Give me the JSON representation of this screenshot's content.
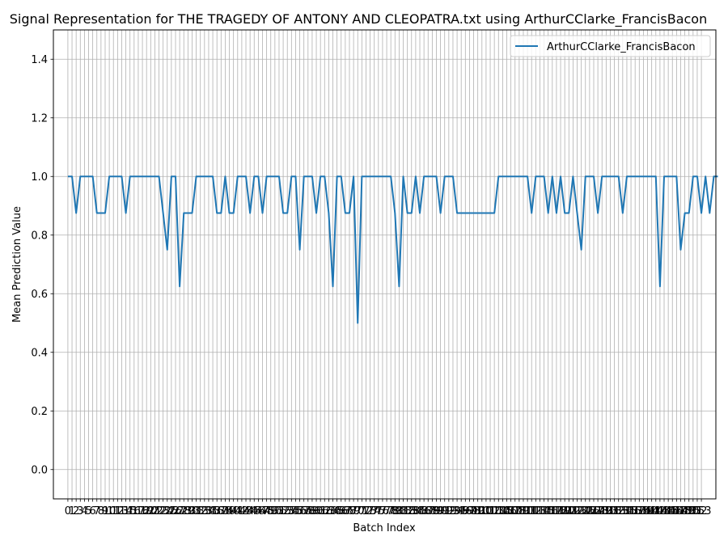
{
  "chart_data": {
    "type": "line",
    "title": "Signal Representation for THE TRAGEDY OF ANTONY AND CLEOPATRA.txt using ArthurCClarke_FrancisBacon",
    "xlabel": "Batch Index",
    "ylabel": "Mean Prediction Value",
    "ylim": [
      -0.1,
      1.5
    ],
    "xlim": [
      -3.5,
      156.5
    ],
    "yticks": [
      0.0,
      0.2,
      0.4,
      0.6,
      0.8,
      1.0,
      1.2,
      1.4
    ],
    "ytick_labels": [
      "0.0",
      "0.2",
      "0.4",
      "0.6",
      "0.8",
      "1.0",
      "1.2",
      "1.4"
    ],
    "x_tick_count": 154,
    "grid": true,
    "legend_position": "upper right",
    "series": [
      {
        "name": "ArthurCClarke_FrancisBacon",
        "color": "#1f77b4",
        "values": [
          1.0,
          1.0,
          0.875,
          1.0,
          1.0,
          1.0,
          1.0,
          0.875,
          0.875,
          0.875,
          1.0,
          1.0,
          1.0,
          1.0,
          0.875,
          1.0,
          1.0,
          1.0,
          1.0,
          1.0,
          1.0,
          1.0,
          1.0,
          0.875,
          0.75,
          1.0,
          1.0,
          0.625,
          0.875,
          0.875,
          0.875,
          1.0,
          1.0,
          1.0,
          1.0,
          1.0,
          0.875,
          0.875,
          1.0,
          0.875,
          0.875,
          1.0,
          1.0,
          1.0,
          0.875,
          1.0,
          1.0,
          0.875,
          1.0,
          1.0,
          1.0,
          1.0,
          0.875,
          0.875,
          1.0,
          1.0,
          0.75,
          1.0,
          1.0,
          1.0,
          0.875,
          1.0,
          1.0,
          0.875,
          0.625,
          1.0,
          1.0,
          0.875,
          0.875,
          1.0,
          0.5,
          1.0,
          1.0,
          1.0,
          1.0,
          1.0,
          1.0,
          1.0,
          1.0,
          0.875,
          0.625,
          1.0,
          0.875,
          0.875,
          1.0,
          0.875,
          1.0,
          1.0,
          1.0,
          1.0,
          0.875,
          1.0,
          1.0,
          1.0,
          0.875,
          0.875,
          0.875,
          0.875,
          0.875,
          0.875,
          0.875,
          0.875,
          0.875,
          0.875,
          1.0,
          1.0,
          1.0,
          1.0,
          1.0,
          1.0,
          1.0,
          1.0,
          0.875,
          1.0,
          1.0,
          1.0,
          0.875,
          1.0,
          0.875,
          1.0,
          0.875,
          0.875,
          1.0,
          0.875,
          0.75,
          1.0,
          1.0,
          1.0,
          0.875,
          1.0,
          1.0,
          1.0,
          1.0,
          1.0,
          0.875,
          1.0,
          1.0,
          1.0,
          1.0,
          1.0,
          1.0,
          1.0,
          1.0,
          0.625,
          1.0,
          1.0,
          1.0,
          1.0,
          0.75,
          0.875,
          0.875,
          1.0,
          1.0,
          0.875,
          1.0,
          0.875,
          1.0,
          1.0
        ]
      }
    ]
  }
}
